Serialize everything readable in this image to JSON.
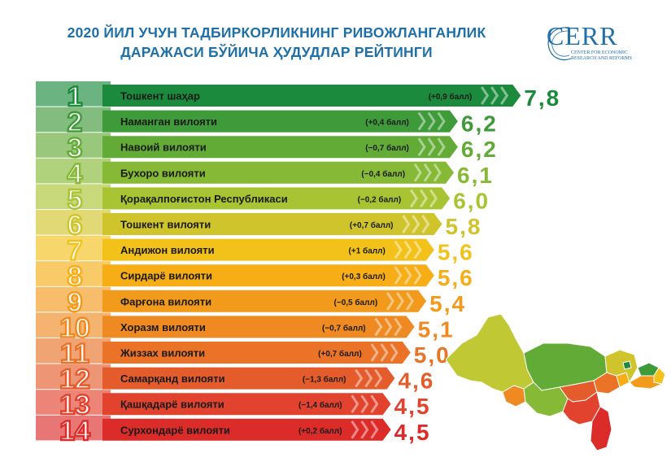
{
  "header": {
    "title_line1": "2020 ЙИЛ УЧУН ТАДБИРКОРЛИКНИНГ РИВОЖЛАНГАНЛИК",
    "title_line2": "ДАРАЖАСИ БЎЙИЧА ҲУДУДЛАР РЕЙТИНГИ"
  },
  "logo": {
    "word": "CERR",
    "line1": "CENTER FOR ECONOMIC",
    "line2": "RESEARCH AND REFORMS",
    "color": "#1f6fa8"
  },
  "chart_data": {
    "type": "bar",
    "orientation": "horizontal",
    "title": "2020 ЙИЛ УЧУН ТАДБИРКОРЛИКНИНГ РИВОЖЛАНГАНЛИК ДАРАЖАСИ БЎЙИЧА ҲУДУДЛАР РЕЙТИНГИ",
    "ranks": [
      "1",
      "2",
      "3",
      "4",
      "5",
      "6",
      "7",
      "8",
      "9",
      "10",
      "11",
      "12",
      "13",
      "14"
    ],
    "categories": [
      "Тошкент шаҳар",
      "Наманган вилояти",
      "Навоий вилояти",
      "Бухоро вилояти",
      "Қорақалпоғистон Республикаси",
      "Тошкент вилояти",
      "Андижон вилояти",
      "Сирдарё вилояти",
      "Фарғона вилояти",
      "Хоразм вилояти",
      "Жиззах вилояти",
      "Самарқанд вилояти",
      "Қашқадарё вилояти",
      "Сурхондарё вилояти"
    ],
    "values": [
      7.8,
      6.2,
      6.2,
      6.1,
      6.0,
      5.8,
      5.6,
      5.6,
      5.4,
      5.1,
      5.0,
      4.6,
      4.5,
      4.5
    ],
    "value_labels": [
      "7,8",
      "6,2",
      "6,2",
      "6,1",
      "6,0",
      "5,8",
      "5,6",
      "5,6",
      "5,4",
      "5,1",
      "5,0",
      "4,6",
      "4,5",
      "4,5"
    ],
    "changes": [
      "(+0,9 балл)",
      "(+0,4 балл)",
      "(−0,7 балл)",
      "(−0,4 балл)",
      "(−0,2 балл)",
      "(+0,7 балл)",
      "(+1 балл)",
      "(+0,3 балл)",
      "(−0,5 балл)",
      "(−0,7 балл)",
      "(+0,7 балл)",
      "(−1,3 балл)",
      "(−1,4 балл)",
      "(+0,2 балл)"
    ],
    "colors": [
      "#1c8a3c",
      "#3f9a3a",
      "#62ab37",
      "#86b935",
      "#a9c433",
      "#d0c42c",
      "#f2c21b",
      "#f6ad16",
      "#f29a1b",
      "#ee8a21",
      "#ea7327",
      "#e55c2c",
      "#e2432e",
      "#dc2c2a"
    ],
    "xlim": [
      3.0,
      8.0
    ]
  },
  "map": {
    "colors": [
      "#c0c934",
      "#a9c433",
      "#86b935",
      "#62ab37",
      "#e2432e",
      "#ea7327",
      "#dc2c2a",
      "#f29a1b",
      "#f6ad16",
      "#ee8a21",
      "#1c8a3c",
      "#3f9a3a",
      "#d0c42c"
    ]
  }
}
